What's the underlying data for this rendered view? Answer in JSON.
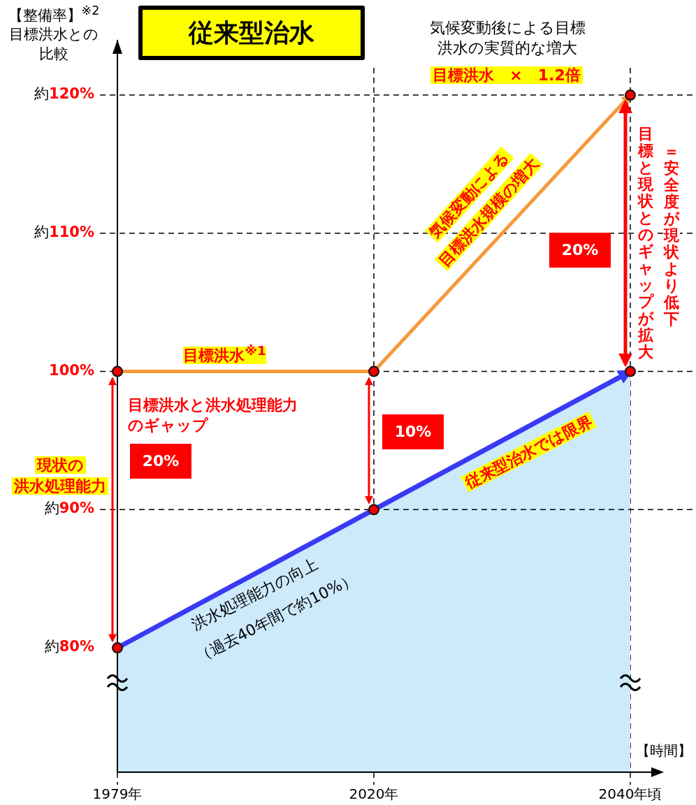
{
  "chart_data": {
    "type": "line",
    "title": "従来型治水",
    "ylabel": "【整備率】$^{※2}$目標洪水との比較",
    "xlabel": "【時間】",
    "categories": [
      "1979年",
      "2020年",
      "2040年頃"
    ],
    "ylim": [
      71,
      124
    ],
    "yticks": [
      {
        "value": 80,
        "label": "80%"
      },
      {
        "value": 90,
        "label": "90%"
      },
      {
        "value": 100,
        "label": "100%"
      },
      {
        "value": 110,
        "label": "110%"
      },
      {
        "value": 120,
        "label": "120%"
      }
    ],
    "marker": "circle",
    "line_style": "solid",
    "legend": false,
    "grid": "x",
    "series": [
      {
        "type": "area",
        "color": "#3a3af5",
        "values": [
          80,
          90,
          100
        ]
      },
      {
        "type": "line",
        "name": "目標洪水$^{※1}$",
        "color": "#f7993a",
        "values": [
          100,
          100,
          120
        ]
      }
    ],
    "ref_lines": [
      {
        "axis": "y",
        "value": 90,
        "line_style": "dashed"
      },
      {
        "axis": "y",
        "value": 100,
        "line_style": "dashed"
      },
      {
        "axis": "y",
        "value": 110,
        "line_style": "dashed"
      },
      {
        "axis": "y",
        "value": 120,
        "line_style": "dashed"
      }
    ],
    "annotations": [
      "気候変動後による目標洪水の実質的な増大",
      "目標洪水　×　1.2倍",
      "気候変動による",
      "目標洪水規模の増大",
      "目標と現状とのギャップが拡大",
      "＝安全度が現状より低下",
      "目標洪水と洪水処理能力のギャップ",
      "現状の",
      "洪水処理能力",
      "従来型治水では限界",
      "洪水処理能力の向上",
      "（過去40年間で約10%）",
      "20%",
      "10%",
      "20%",
      "約",
      "約",
      "約",
      "約"
    ]
  }
}
